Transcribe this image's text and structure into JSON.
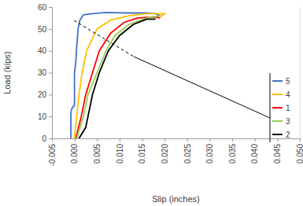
{
  "chart_data": {
    "type": "line",
    "x_label": "Slip (inches)",
    "y_label": "Load (kips)",
    "xlim": [
      -0.005,
      0.05
    ],
    "xticks": [
      {
        "value": -0.005,
        "label": "-0.005"
      },
      {
        "value": 0,
        "label": "0.000"
      },
      {
        "value": 0.005,
        "label": "0.005"
      },
      {
        "value": 0.01,
        "label": "0.010"
      },
      {
        "value": 0.015,
        "label": "0.015"
      },
      {
        "value": 0.02,
        "label": "0.020"
      },
      {
        "value": 0.025,
        "label": "0.025"
      },
      {
        "value": 0.03,
        "label": "0.030"
      },
      {
        "value": 0.035,
        "label": "0.035"
      },
      {
        "value": 0.04,
        "label": "0.040"
      },
      {
        "value": 0.045,
        "label": "0.045"
      },
      {
        "value": 0.05,
        "label": "0.050"
      }
    ],
    "ylim": [
      0,
      60
    ],
    "yticks": [
      0,
      10,
      20,
      30,
      40,
      50,
      60
    ],
    "legend": "right",
    "series": [
      {
        "name": "5",
        "color": "#4472c4",
        "x": [
          -0.0008,
          -0.0008,
          -0.0005,
          0.0,
          0.0,
          0.0003,
          0.0005,
          0.0008,
          0.0012,
          0.002,
          0.004,
          0.007,
          0.012,
          0.016,
          0.018,
          0.019
        ],
        "values": [
          0,
          12,
          14,
          15,
          30,
          35,
          42,
          50,
          54,
          56.5,
          57,
          57.5,
          57.3,
          57.3,
          57,
          56
        ]
      },
      {
        "name": "4",
        "color": "#ffc000",
        "x": [
          0.0,
          0.0005,
          0.001,
          0.0017,
          0.0027,
          0.005,
          0.008,
          0.012,
          0.016,
          0.02,
          0.019
        ],
        "values": [
          0,
          10,
          20,
          30,
          40,
          50,
          54,
          56,
          57,
          57,
          55.5
        ]
      },
      {
        "name": "1",
        "color": "#ff0000",
        "x": [
          0.0003,
          0.0015,
          0.0025,
          0.004,
          0.0055,
          0.008,
          0.011,
          0.014,
          0.018,
          0.019
        ],
        "values": [
          0,
          10,
          20,
          30,
          40,
          48,
          53,
          55,
          55.5,
          55
        ]
      },
      {
        "name": "3",
        "color": "#92d050",
        "x": [
          0.0005,
          0.002,
          0.003,
          0.005,
          0.007,
          0.009,
          0.012,
          0.016,
          0.019
        ],
        "values": [
          0,
          10,
          20,
          30,
          40,
          47,
          52,
          55,
          56
        ]
      },
      {
        "name": "2",
        "color": "#000000",
        "x": [
          0.001,
          0.0025,
          0.003,
          0.004,
          0.0055,
          0.0075,
          0.01,
          0.013,
          0.016,
          0.018
        ],
        "values": [
          0,
          5,
          10,
          20,
          30,
          40,
          47,
          52,
          54.5,
          54.5
        ]
      }
    ]
  }
}
